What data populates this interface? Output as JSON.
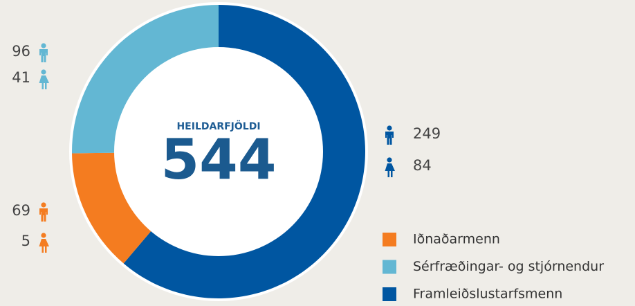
{
  "chart_data": {
    "type": "donut",
    "center_label": "HEILDARFJÖLDI",
    "total": 544,
    "series": [
      {
        "name": "Iðnaðarmenn",
        "color": "#f47c20",
        "values": [
          69,
          5
        ]
      },
      {
        "name": "Sérfræðingar- og stjórnendur",
        "color": "#63b7d3",
        "values": [
          96,
          41
        ]
      },
      {
        "name": "Framleiðslustarfsmenn",
        "color": "#0056a1",
        "values": [
          249,
          84
        ]
      }
    ]
  }
}
